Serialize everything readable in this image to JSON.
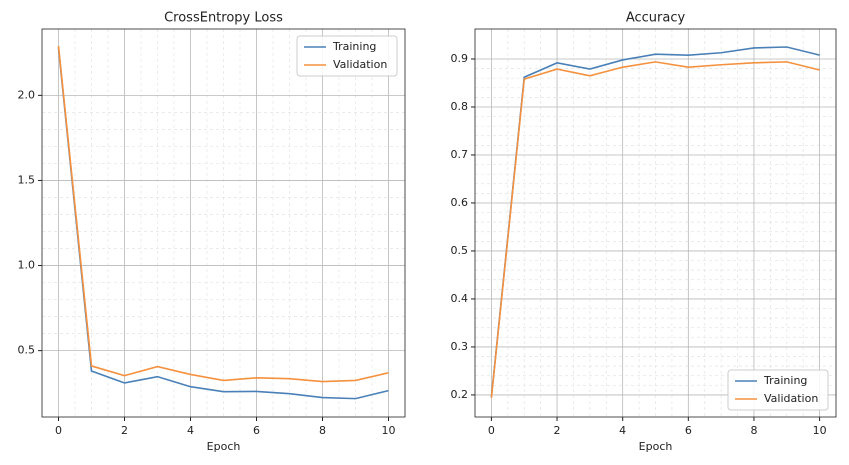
{
  "chart_data": [
    {
      "type": "line",
      "title": "CrossEntropy Loss",
      "xlabel": "Epoch",
      "x": [
        0,
        1,
        2,
        3,
        4,
        5,
        6,
        7,
        8,
        9,
        10
      ],
      "series": [
        {
          "name": "Training",
          "color": "#4a80b8",
          "values": [
            2.28,
            0.38,
            0.31,
            0.347,
            0.288,
            0.259,
            0.26,
            0.247,
            0.224,
            0.218,
            0.265
          ]
        },
        {
          "name": "Validation",
          "color": "#f5913e",
          "values": [
            2.29,
            0.41,
            0.353,
            0.406,
            0.36,
            0.325,
            0.34,
            0.335,
            0.318,
            0.325,
            0.37
          ]
        }
      ],
      "xlim": [
        -0.5,
        10.5
      ],
      "xticks": [
        0,
        2,
        4,
        6,
        8,
        10
      ],
      "ylim": [
        0.11,
        2.39
      ],
      "yticks": [
        {
          "value": 0.5,
          "label": "0.5"
        },
        {
          "value": 1,
          "label": "1.0"
        },
        {
          "value": 1.5,
          "label": "1.5"
        },
        {
          "value": 2,
          "label": "2.0"
        }
      ],
      "grid": true,
      "minor_grid": true,
      "legend": "upper right"
    },
    {
      "type": "line",
      "title": "Accuracy",
      "xlabel": "Epoch",
      "x": [
        0,
        1,
        2,
        3,
        4,
        5,
        6,
        7,
        8,
        9,
        10
      ],
      "series": [
        {
          "name": "Training",
          "color": "#4a80b8",
          "values": [
            0.196,
            0.862,
            0.892,
            0.879,
            0.898,
            0.91,
            0.908,
            0.913,
            0.923,
            0.925,
            0.908
          ]
        },
        {
          "name": "Validation",
          "color": "#f5913e",
          "values": [
            0.194,
            0.858,
            0.879,
            0.865,
            0.883,
            0.894,
            0.883,
            0.888,
            0.892,
            0.894,
            0.877
          ]
        }
      ],
      "xlim": [
        -0.5,
        10.5
      ],
      "xticks": [
        0,
        2,
        4,
        6,
        8,
        10
      ],
      "ylim": [
        0.154,
        0.9625
      ],
      "yticks": [
        0.2,
        0.3,
        0.4,
        0.5,
        0.6,
        0.7,
        0.8,
        0.9
      ],
      "grid": true,
      "minor_grid": true,
      "legend": "lower right"
    }
  ]
}
